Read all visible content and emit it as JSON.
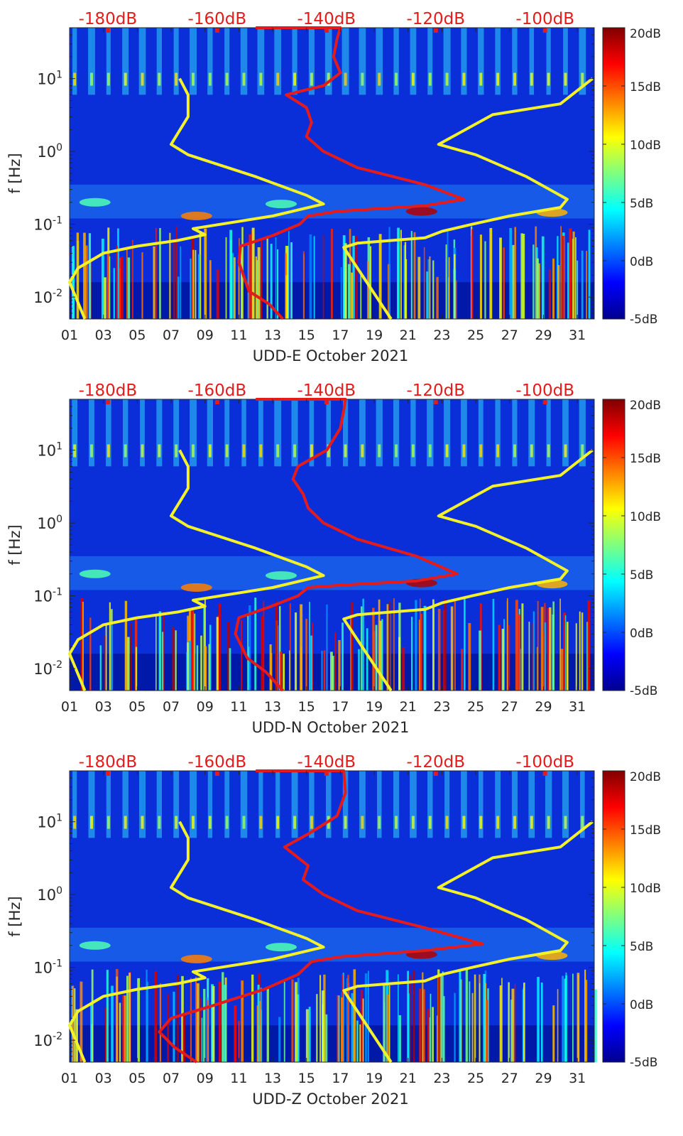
{
  "figure": {
    "description_labels": true
  },
  "chart_data": [
    {
      "type": "heatmap",
      "xlabel": "UDD-E October 2021",
      "ylabel": "f [Hz]",
      "x_ticks": [
        "01",
        "03",
        "05",
        "07",
        "09",
        "11",
        "13",
        "15",
        "17",
        "19",
        "21",
        "23",
        "25",
        "27",
        "29",
        "31"
      ],
      "x_range": [
        1,
        32
      ],
      "y_scale": "log",
      "y_range": [
        0.005,
        50
      ],
      "y_ticks": [
        {
          "value": 0.01,
          "base": "10",
          "exp": "-2"
        },
        {
          "value": 0.1,
          "base": "10",
          "exp": "-1"
        },
        {
          "value": 1,
          "base": "10",
          "exp": "0"
        },
        {
          "value": 10,
          "base": "10",
          "exp": "1"
        }
      ],
      "top_axis_ticks": [
        "-180dB",
        "-160dB",
        "-140dB",
        "-120dB",
        "-100dB"
      ],
      "top_axis_range_db": [
        -187,
        -91
      ],
      "colorbar": {
        "ticks": [
          "20dB",
          "15dB",
          "10dB",
          "5dB",
          "0dB",
          "-5dB"
        ],
        "range_db": [
          -5,
          20
        ]
      },
      "series": [
        {
          "name": "noise model low (yellow, left)",
          "color": "#f3f12a",
          "points": [
            [
              1.9,
              0.005
            ],
            [
              1.0,
              0.016
            ],
            [
              1.5,
              0.025
            ],
            [
              3,
              0.04
            ],
            [
              5,
              0.05
            ],
            [
              7.4,
              0.06
            ],
            [
              9,
              0.072
            ],
            [
              8.3,
              0.087
            ],
            [
              13,
              0.13
            ],
            [
              16,
              0.19
            ],
            [
              15,
              0.25
            ],
            [
              12,
              0.45
            ],
            [
              8,
              0.9
            ],
            [
              7,
              1.25
            ],
            [
              8,
              3
            ],
            [
              8,
              6
            ],
            [
              7.5,
              10
            ]
          ]
        },
        {
          "name": "noise model high (yellow, right)",
          "color": "#f3f12a",
          "points": [
            [
              20,
              0.005
            ],
            [
              17.2,
              0.048
            ],
            [
              18,
              0.055
            ],
            [
              22,
              0.065
            ],
            [
              23,
              0.08
            ],
            [
              24.8,
              0.1
            ],
            [
              27,
              0.13
            ],
            [
              30,
              0.17
            ],
            [
              30.4,
              0.22
            ],
            [
              28,
              0.45
            ],
            [
              25,
              0.9
            ],
            [
              22.8,
              1.25
            ],
            [
              26,
              3.2
            ],
            [
              30,
              4.5
            ],
            [
              31.9,
              10
            ]
          ]
        },
        {
          "name": "station noise (red)",
          "color": "#e51b1b",
          "points": [
            [
              13.6,
              0.005
            ],
            [
              12.8,
              0.008
            ],
            [
              11.6,
              0.012
            ],
            [
              11.0,
              0.03
            ],
            [
              11.1,
              0.05
            ],
            [
              13.0,
              0.07
            ],
            [
              14.6,
              0.1
            ],
            [
              15.1,
              0.13
            ],
            [
              16.8,
              0.15
            ],
            [
              22,
              0.18
            ],
            [
              24.3,
              0.22
            ],
            [
              22,
              0.35
            ],
            [
              18,
              0.6
            ],
            [
              16,
              1.0
            ],
            [
              15.0,
              1.6
            ],
            [
              15.3,
              2.5
            ],
            [
              15.0,
              4
            ],
            [
              13.8,
              6
            ],
            [
              16,
              8
            ],
            [
              17,
              12
            ],
            [
              16.6,
              20
            ],
            [
              16.8,
              35
            ],
            [
              17.0,
              50
            ],
            [
              12,
              50
            ]
          ]
        }
      ]
    },
    {
      "type": "heatmap",
      "xlabel": "UDD-N October 2021",
      "ylabel": "f [Hz]",
      "x_ticks": [
        "01",
        "03",
        "05",
        "07",
        "09",
        "11",
        "13",
        "15",
        "17",
        "19",
        "21",
        "23",
        "25",
        "27",
        "29",
        "31"
      ],
      "x_range": [
        1,
        32
      ],
      "y_scale": "log",
      "y_range": [
        0.005,
        50
      ],
      "y_ticks": [
        {
          "value": 0.01,
          "base": "10",
          "exp": "-2"
        },
        {
          "value": 0.1,
          "base": "10",
          "exp": "-1"
        },
        {
          "value": 1,
          "base": "10",
          "exp": "0"
        },
        {
          "value": 10,
          "base": "10",
          "exp": "1"
        }
      ],
      "top_axis_ticks": [
        "-180dB",
        "-160dB",
        "-140dB",
        "-120dB",
        "-100dB"
      ],
      "top_axis_range_db": [
        -187,
        -91
      ],
      "colorbar": {
        "ticks": [
          "20dB",
          "15dB",
          "10dB",
          "5dB",
          "0dB",
          "-5dB"
        ],
        "range_db": [
          -5,
          20
        ]
      },
      "series": [
        {
          "name": "noise model low (yellow, left)",
          "color": "#f3f12a",
          "points": [
            [
              1.9,
              0.005
            ],
            [
              1.0,
              0.016
            ],
            [
              1.5,
              0.025
            ],
            [
              3,
              0.04
            ],
            [
              5,
              0.05
            ],
            [
              7.4,
              0.06
            ],
            [
              9,
              0.072
            ],
            [
              8.3,
              0.087
            ],
            [
              13,
              0.13
            ],
            [
              16,
              0.19
            ],
            [
              15,
              0.25
            ],
            [
              12,
              0.45
            ],
            [
              8,
              0.9
            ],
            [
              7,
              1.25
            ],
            [
              8,
              3
            ],
            [
              8,
              6
            ],
            [
              7.5,
              10
            ]
          ]
        },
        {
          "name": "noise model high (yellow, right)",
          "color": "#f3f12a",
          "points": [
            [
              20,
              0.005
            ],
            [
              17.2,
              0.048
            ],
            [
              18,
              0.055
            ],
            [
              22,
              0.065
            ],
            [
              23,
              0.08
            ],
            [
              24.8,
              0.1
            ],
            [
              27,
              0.13
            ],
            [
              30,
              0.17
            ],
            [
              30.4,
              0.22
            ],
            [
              28,
              0.45
            ],
            [
              25,
              0.9
            ],
            [
              22.8,
              1.25
            ],
            [
              26,
              3.2
            ],
            [
              30,
              4.5
            ],
            [
              31.9,
              10
            ]
          ]
        },
        {
          "name": "station noise (red)",
          "color": "#e51b1b",
          "points": [
            [
              13.6,
              0.005
            ],
            [
              12.6,
              0.009
            ],
            [
              11.5,
              0.014
            ],
            [
              10.8,
              0.03
            ],
            [
              11.0,
              0.05
            ],
            [
              12.8,
              0.07
            ],
            [
              14.5,
              0.1
            ],
            [
              15.1,
              0.13
            ],
            [
              17,
              0.14
            ],
            [
              21.5,
              0.16
            ],
            [
              23.9,
              0.2
            ],
            [
              21.5,
              0.35
            ],
            [
              18,
              0.6
            ],
            [
              16,
              1.0
            ],
            [
              15.1,
              1.6
            ],
            [
              14.8,
              2.5
            ],
            [
              14.2,
              4
            ],
            [
              14.5,
              6
            ],
            [
              16.2,
              10
            ],
            [
              17,
              20
            ],
            [
              17.2,
              35
            ],
            [
              17.3,
              50
            ],
            [
              12,
              50
            ]
          ]
        }
      ]
    },
    {
      "type": "heatmap",
      "xlabel": "UDD-Z October 2021",
      "ylabel": "f [Hz]",
      "x_ticks": [
        "01",
        "03",
        "05",
        "07",
        "09",
        "11",
        "13",
        "15",
        "17",
        "19",
        "21",
        "23",
        "25",
        "27",
        "29",
        "31"
      ],
      "x_range": [
        1,
        32
      ],
      "y_scale": "log",
      "y_range": [
        0.005,
        50
      ],
      "y_ticks": [
        {
          "value": 0.01,
          "base": "10",
          "exp": "-2"
        },
        {
          "value": 0.1,
          "base": "10",
          "exp": "-1"
        },
        {
          "value": 1,
          "base": "10",
          "exp": "0"
        },
        {
          "value": 10,
          "base": "10",
          "exp": "1"
        }
      ],
      "top_axis_ticks": [
        "-180dB",
        "-160dB",
        "-140dB",
        "-120dB",
        "-100dB"
      ],
      "top_axis_range_db": [
        -187,
        -91
      ],
      "colorbar": {
        "ticks": [
          "20dB",
          "15dB",
          "10dB",
          "5dB",
          "0dB",
          "-5dB"
        ],
        "range_db": [
          -5,
          20
        ]
      },
      "series": [
        {
          "name": "noise model low (yellow, left)",
          "color": "#f3f12a",
          "points": [
            [
              1.9,
              0.005
            ],
            [
              1.0,
              0.016
            ],
            [
              1.5,
              0.025
            ],
            [
              3,
              0.04
            ],
            [
              5,
              0.05
            ],
            [
              7.4,
              0.06
            ],
            [
              9,
              0.072
            ],
            [
              8.3,
              0.087
            ],
            [
              13,
              0.13
            ],
            [
              16,
              0.19
            ],
            [
              15,
              0.25
            ],
            [
              12,
              0.45
            ],
            [
              8,
              0.9
            ],
            [
              7,
              1.25
            ],
            [
              8,
              3
            ],
            [
              8,
              6
            ],
            [
              7.5,
              10
            ]
          ]
        },
        {
          "name": "noise model high (yellow, right)",
          "color": "#f3f12a",
          "points": [
            [
              20,
              0.005
            ],
            [
              17.2,
              0.048
            ],
            [
              18,
              0.055
            ],
            [
              22,
              0.065
            ],
            [
              23,
              0.08
            ],
            [
              24.8,
              0.1
            ],
            [
              27,
              0.13
            ],
            [
              30,
              0.17
            ],
            [
              30.4,
              0.22
            ],
            [
              28,
              0.45
            ],
            [
              25,
              0.9
            ],
            [
              22.8,
              1.25
            ],
            [
              26,
              3.2
            ],
            [
              30,
              4.5
            ],
            [
              31.9,
              10
            ]
          ]
        },
        {
          "name": "station noise (red)",
          "color": "#e51b1b",
          "points": [
            [
              8.5,
              0.005
            ],
            [
              7.2,
              0.008
            ],
            [
              6.3,
              0.013
            ],
            [
              7.0,
              0.02
            ],
            [
              9.5,
              0.03
            ],
            [
              12.5,
              0.05
            ],
            [
              14.5,
              0.08
            ],
            [
              15.3,
              0.12
            ],
            [
              17,
              0.14
            ],
            [
              22,
              0.17
            ],
            [
              25.4,
              0.21
            ],
            [
              22,
              0.35
            ],
            [
              18,
              0.6
            ],
            [
              16,
              1.0
            ],
            [
              14.8,
              1.6
            ],
            [
              15.1,
              2.5
            ],
            [
              13.7,
              4.5
            ],
            [
              15.2,
              7
            ],
            [
              16.8,
              12
            ],
            [
              17.3,
              25
            ],
            [
              17.2,
              50
            ],
            [
              12,
              50
            ]
          ]
        }
      ]
    }
  ]
}
